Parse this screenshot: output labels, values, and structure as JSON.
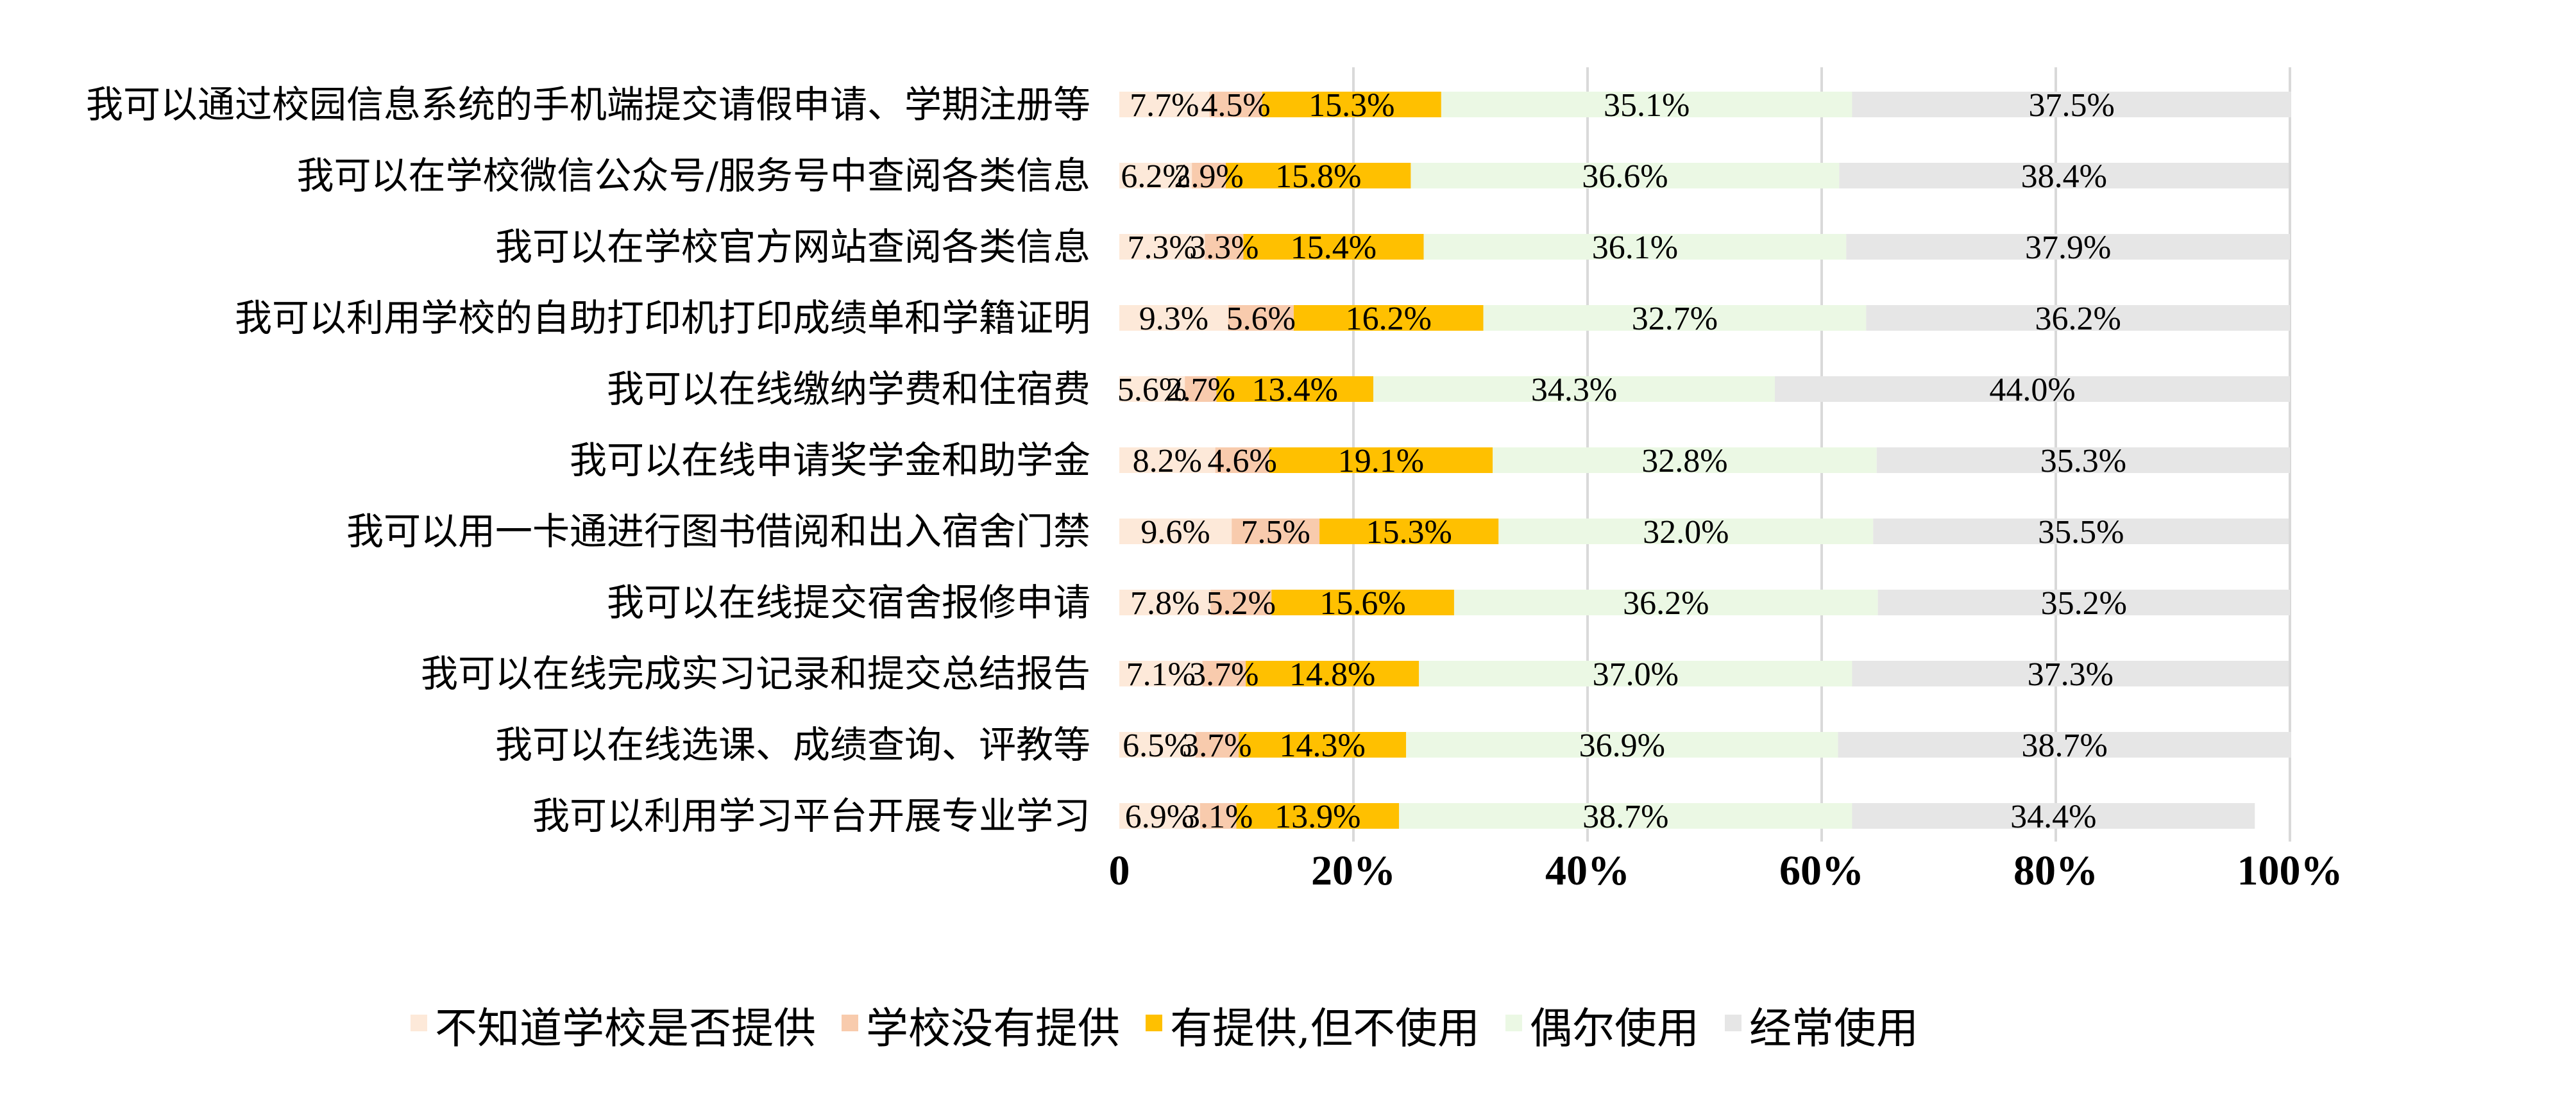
{
  "chart_data": {
    "type": "bar",
    "orientation": "horizontal",
    "stacked": "percent",
    "categories": [
      "我可以通过校园信息系统的手机端提交请假申请、学期注册等",
      "我可以在学校微信公众号/服务号中查阅各类信息",
      "我可以在学校官方网站查阅各类信息",
      "我可以利用学校的自助打印机打印成绩单和学籍证明",
      "我可以在线缴纳学费和住宿费",
      "我可以在线申请奖学金和助学金",
      "我可以用一卡通进行图书借阅和出入宿舍门禁",
      "我可以在线提交宿舍报修申请",
      "我可以在线完成实习记录和提交总结报告",
      "我可以在线选课、成绩查询、评教等",
      "我可以利用学习平台开展专业学习"
    ],
    "series": [
      {
        "name": "不知道学校是否提供",
        "color": "#fde9d9",
        "values": [
          7.7,
          6.2,
          7.3,
          9.3,
          5.6,
          8.2,
          9.6,
          7.8,
          7.1,
          6.5,
          6.9
        ]
      },
      {
        "name": "学校没有提供",
        "color": "#f8cbad",
        "values": [
          4.5,
          2.9,
          3.3,
          5.6,
          2.7,
          4.6,
          7.5,
          5.2,
          3.7,
          3.7,
          3.1
        ]
      },
      {
        "name": "有提供,但不使用",
        "color": "#ffc000",
        "values": [
          15.3,
          15.8,
          15.4,
          16.2,
          13.4,
          19.1,
          15.3,
          15.6,
          14.8,
          14.3,
          13.9
        ]
      },
      {
        "name": "偶尔使用",
        "color": "#ebf8e4",
        "values": [
          35.1,
          36.6,
          36.1,
          32.7,
          34.3,
          32.8,
          32.0,
          36.2,
          37.0,
          36.9,
          38.7
        ]
      },
      {
        "name": "经常使用",
        "color": "#e6e6e6",
        "values": [
          37.5,
          38.4,
          37.9,
          36.2,
          44.0,
          35.3,
          35.5,
          35.2,
          37.3,
          38.7,
          34.4
        ]
      }
    ],
    "x_ticks": [
      "0",
      "20%",
      "40%",
      "60%",
      "80%",
      "100%"
    ],
    "xlim": [
      0,
      100
    ],
    "grid": "vertical",
    "legend": "bottom",
    "value_label_suffix": "%"
  }
}
